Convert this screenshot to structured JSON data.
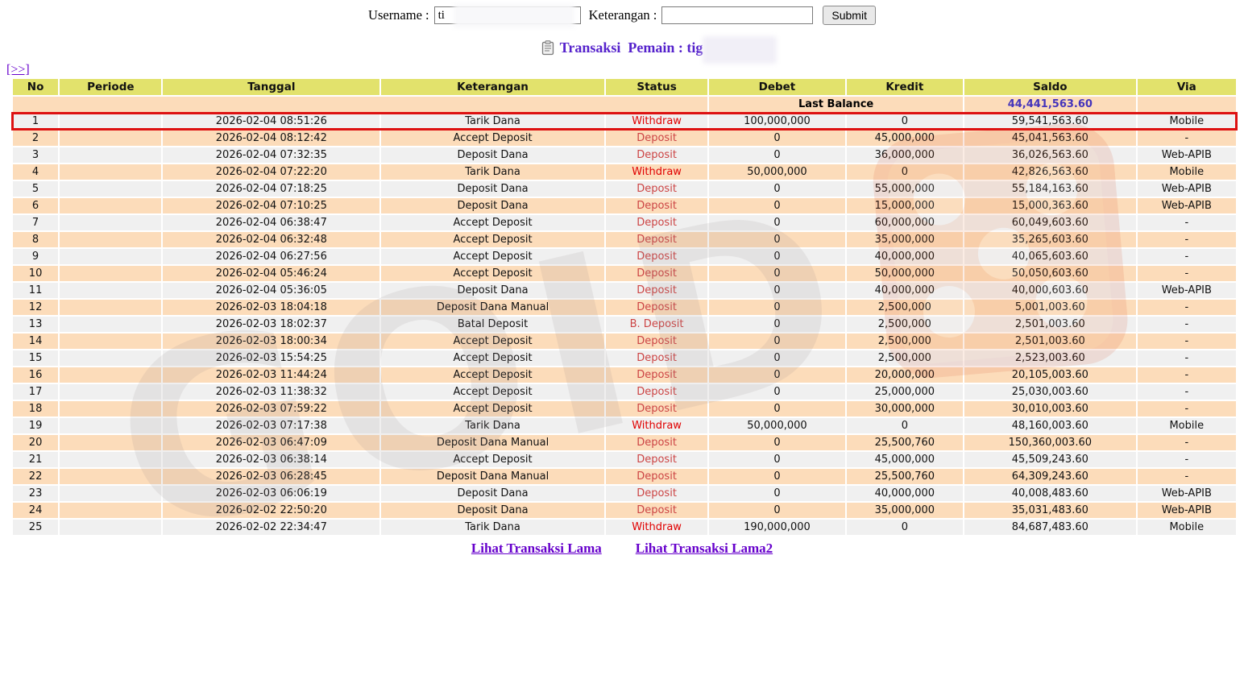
{
  "form": {
    "username_label": "Username :",
    "username_value": "ti",
    "keterangan_label": "Keterangan :",
    "keterangan_value": "",
    "submit_label": "Submit"
  },
  "header": {
    "title": "Transaksi  Pemain : tig",
    "icon": "clipboard-icon"
  },
  "pagination": {
    "next_label": "[>>]"
  },
  "table": {
    "headers": [
      "No",
      "Periode",
      "Tanggal",
      "Keterangan",
      "Status",
      "Debet",
      "Kredit",
      "Saldo",
      "Via"
    ],
    "last_balance": {
      "label": "Last Balance",
      "value": "44,441,563.60"
    },
    "rows": [
      {
        "no": "1",
        "periode": "",
        "tanggal": "2026-02-04 08:51:26",
        "keterangan": "Tarik Dana",
        "status": "Withdraw",
        "debet": "100,000,000",
        "kredit": "0",
        "saldo": "59,541,563.60",
        "via": "Mobile",
        "highlight": true
      },
      {
        "no": "2",
        "periode": "",
        "tanggal": "2026-02-04 08:12:42",
        "keterangan": "Accept Deposit",
        "status": "Deposit",
        "debet": "0",
        "kredit": "45,000,000",
        "saldo": "45,041,563.60",
        "via": "-"
      },
      {
        "no": "3",
        "periode": "",
        "tanggal": "2026-02-04 07:32:35",
        "keterangan": "Deposit Dana",
        "status": "Deposit",
        "debet": "0",
        "kredit": "36,000,000",
        "saldo": "36,026,563.60",
        "via": "Web-APIB"
      },
      {
        "no": "4",
        "periode": "",
        "tanggal": "2026-02-04 07:22:20",
        "keterangan": "Tarik Dana",
        "status": "Withdraw",
        "debet": "50,000,000",
        "kredit": "0",
        "saldo": "42,826,563.60",
        "via": "Mobile"
      },
      {
        "no": "5",
        "periode": "",
        "tanggal": "2026-02-04 07:18:25",
        "keterangan": "Deposit Dana",
        "status": "Deposit",
        "debet": "0",
        "kredit": "55,000,000",
        "saldo": "55,184,163.60",
        "via": "Web-APIB"
      },
      {
        "no": "6",
        "periode": "",
        "tanggal": "2026-02-04 07:10:25",
        "keterangan": "Deposit Dana",
        "status": "Deposit",
        "debet": "0",
        "kredit": "15,000,000",
        "saldo": "15,000,363.60",
        "via": "Web-APIB"
      },
      {
        "no": "7",
        "periode": "",
        "tanggal": "2026-02-04 06:38:47",
        "keterangan": "Accept Deposit",
        "status": "Deposit",
        "debet": "0",
        "kredit": "60,000,000",
        "saldo": "60,049,603.60",
        "via": "-"
      },
      {
        "no": "8",
        "periode": "",
        "tanggal": "2026-02-04 06:32:48",
        "keterangan": "Accept Deposit",
        "status": "Deposit",
        "debet": "0",
        "kredit": "35,000,000",
        "saldo": "35,265,603.60",
        "via": "-"
      },
      {
        "no": "9",
        "periode": "",
        "tanggal": "2026-02-04 06:27:56",
        "keterangan": "Accept Deposit",
        "status": "Deposit",
        "debet": "0",
        "kredit": "40,000,000",
        "saldo": "40,065,603.60",
        "via": "-"
      },
      {
        "no": "10",
        "periode": "",
        "tanggal": "2026-02-04 05:46:24",
        "keterangan": "Accept Deposit",
        "status": "Deposit",
        "debet": "0",
        "kredit": "50,000,000",
        "saldo": "50,050,603.60",
        "via": "-"
      },
      {
        "no": "11",
        "periode": "",
        "tanggal": "2026-02-04 05:36:05",
        "keterangan": "Deposit Dana",
        "status": "Deposit",
        "debet": "0",
        "kredit": "40,000,000",
        "saldo": "40,000,603.60",
        "via": "Web-APIB"
      },
      {
        "no": "12",
        "periode": "",
        "tanggal": "2026-02-03 18:04:18",
        "keterangan": "Deposit Dana Manual",
        "status": "Deposit",
        "debet": "0",
        "kredit": "2,500,000",
        "saldo": "5,001,003.60",
        "via": "-"
      },
      {
        "no": "13",
        "periode": "",
        "tanggal": "2026-02-03 18:02:37",
        "keterangan": "Batal Deposit",
        "status": "B. Deposit",
        "debet": "0",
        "kredit": "2,500,000",
        "saldo": "2,501,003.60",
        "via": "-"
      },
      {
        "no": "14",
        "periode": "",
        "tanggal": "2026-02-03 18:00:34",
        "keterangan": "Accept Deposit",
        "status": "Deposit",
        "debet": "0",
        "kredit": "2,500,000",
        "saldo": "2,501,003.60",
        "via": "-"
      },
      {
        "no": "15",
        "periode": "",
        "tanggal": "2026-02-03 15:54:25",
        "keterangan": "Accept Deposit",
        "status": "Deposit",
        "debet": "0",
        "kredit": "2,500,000",
        "saldo": "2,523,003.60",
        "via": "-"
      },
      {
        "no": "16",
        "periode": "",
        "tanggal": "2026-02-03 11:44:24",
        "keterangan": "Accept Deposit",
        "status": "Deposit",
        "debet": "0",
        "kredit": "20,000,000",
        "saldo": "20,105,003.60",
        "via": "-"
      },
      {
        "no": "17",
        "periode": "",
        "tanggal": "2026-02-03 11:38:32",
        "keterangan": "Accept Deposit",
        "status": "Deposit",
        "debet": "0",
        "kredit": "25,000,000",
        "saldo": "25,030,003.60",
        "via": "-"
      },
      {
        "no": "18",
        "periode": "",
        "tanggal": "2026-02-03 07:59:22",
        "keterangan": "Accept Deposit",
        "status": "Deposit",
        "debet": "0",
        "kredit": "30,000,000",
        "saldo": "30,010,003.60",
        "via": "-"
      },
      {
        "no": "19",
        "periode": "",
        "tanggal": "2026-02-03 07:17:38",
        "keterangan": "Tarik Dana",
        "status": "Withdraw",
        "debet": "50,000,000",
        "kredit": "0",
        "saldo": "48,160,003.60",
        "via": "Mobile"
      },
      {
        "no": "20",
        "periode": "",
        "tanggal": "2026-02-03 06:47:09",
        "keterangan": "Deposit Dana Manual",
        "status": "Deposit",
        "debet": "0",
        "kredit": "25,500,760",
        "saldo": "150,360,003.60",
        "via": "-"
      },
      {
        "no": "21",
        "periode": "",
        "tanggal": "2026-02-03 06:38:14",
        "keterangan": "Accept Deposit",
        "status": "Deposit",
        "debet": "0",
        "kredit": "45,000,000",
        "saldo": "45,509,243.60",
        "via": "-"
      },
      {
        "no": "22",
        "periode": "",
        "tanggal": "2026-02-03 06:28:45",
        "keterangan": "Deposit Dana Manual",
        "status": "Deposit",
        "debet": "0",
        "kredit": "25,500,760",
        "saldo": "64,309,243.60",
        "via": "-"
      },
      {
        "no": "23",
        "periode": "",
        "tanggal": "2026-02-03 06:06:19",
        "keterangan": "Deposit Dana",
        "status": "Deposit",
        "debet": "0",
        "kredit": "40,000,000",
        "saldo": "40,008,483.60",
        "via": "Web-APIB"
      },
      {
        "no": "24",
        "periode": "",
        "tanggal": "2026-02-02 22:50:20",
        "keterangan": "Deposit Dana",
        "status": "Deposit",
        "debet": "0",
        "kredit": "35,000,000",
        "saldo": "35,031,483.60",
        "via": "Web-APIB"
      },
      {
        "no": "25",
        "periode": "",
        "tanggal": "2026-02-02 22:34:47",
        "keterangan": "Tarik Dana",
        "status": "Withdraw",
        "debet": "190,000,000",
        "kredit": "0",
        "saldo": "84,687,483.60",
        "via": "Mobile"
      }
    ]
  },
  "footer": {
    "links": [
      "Lihat Transaksi Lama",
      "Lihat Transaksi Lama2"
    ]
  },
  "colors": {
    "header_bg": "#e2e26c",
    "row_odd_bg": "#f0f0f0",
    "row_even_bg": "#fcdcba",
    "last_balance_bg": "#fcdcba",
    "highlight_border": "#dd1111",
    "status_withdraw": "#e00000",
    "status_deposit": "#cc4444",
    "amount_credit": "#6633cc",
    "last_balance_value": "#4433bb",
    "link": "#6600cc",
    "title_text": "#5522cc"
  }
}
